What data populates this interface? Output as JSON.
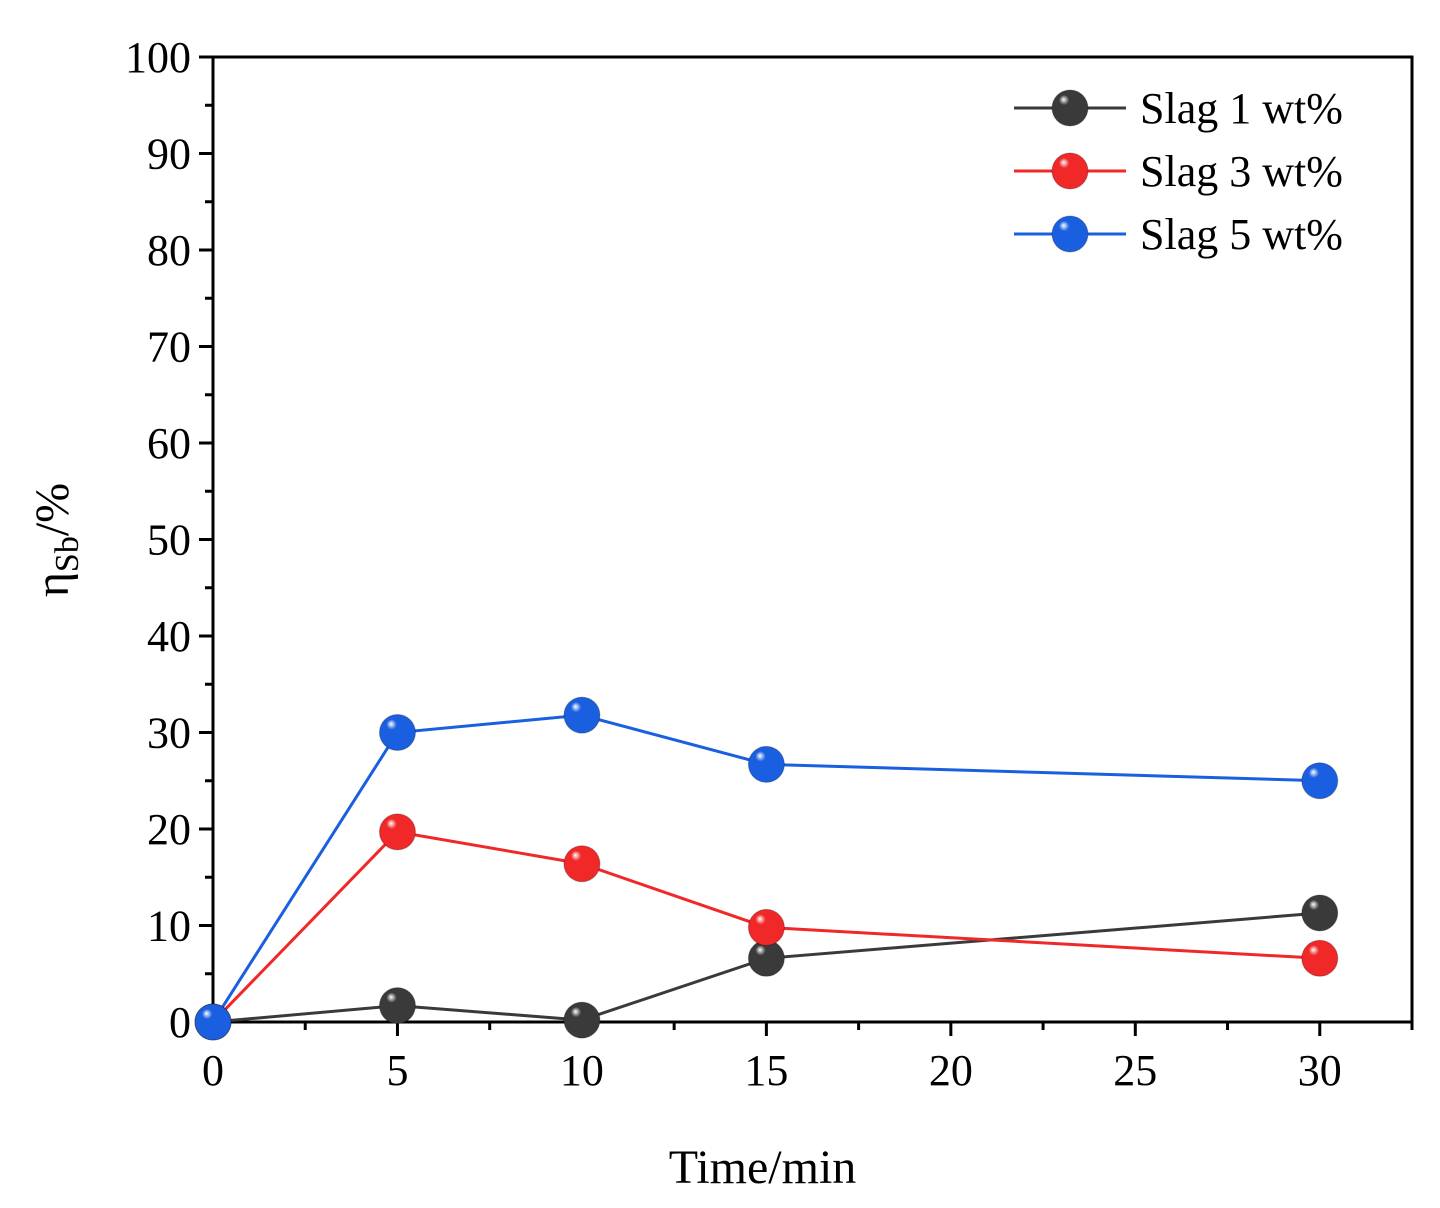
{
  "chart_data": {
    "type": "line",
    "title": "",
    "xlabel": "Time/min",
    "ylabel": {
      "base": "η",
      "subscript": "Sb",
      "suffix": "/%"
    },
    "xlim": [
      0,
      32.5
    ],
    "ylim": [
      0,
      100
    ],
    "x_ticks": [
      0,
      5,
      10,
      15,
      20,
      25,
      30
    ],
    "x_tick_labels": [
      "0",
      "5",
      "10",
      "15",
      "20",
      "25",
      "30"
    ],
    "y_ticks": [
      0,
      10,
      20,
      30,
      40,
      50,
      60,
      70,
      80,
      90,
      100
    ],
    "y_tick_labels": [
      "0",
      "10",
      "20",
      "30",
      "40",
      "50",
      "60",
      "70",
      "80",
      "90",
      "100"
    ],
    "x_minor_step": 2.5,
    "y_minor_step": 5,
    "grid": false,
    "legend_position": "top-right",
    "series": [
      {
        "name": "Slag 1 wt%",
        "color": "#3a3a3a",
        "x": [
          0,
          5,
          10,
          15,
          30
        ],
        "y": [
          0,
          1.7,
          0.2,
          6.6,
          11.3
        ]
      },
      {
        "name": "Slag 3 wt%",
        "color": "#f02828",
        "x": [
          0,
          5,
          10,
          15,
          30
        ],
        "y": [
          0,
          19.7,
          16.4,
          9.8,
          6.6
        ]
      },
      {
        "name": "Slag 5 wt%",
        "color": "#1a5fe0",
        "x": [
          0,
          5,
          10,
          15,
          30
        ],
        "y": [
          0,
          30,
          31.8,
          26.7,
          25
        ]
      }
    ]
  }
}
